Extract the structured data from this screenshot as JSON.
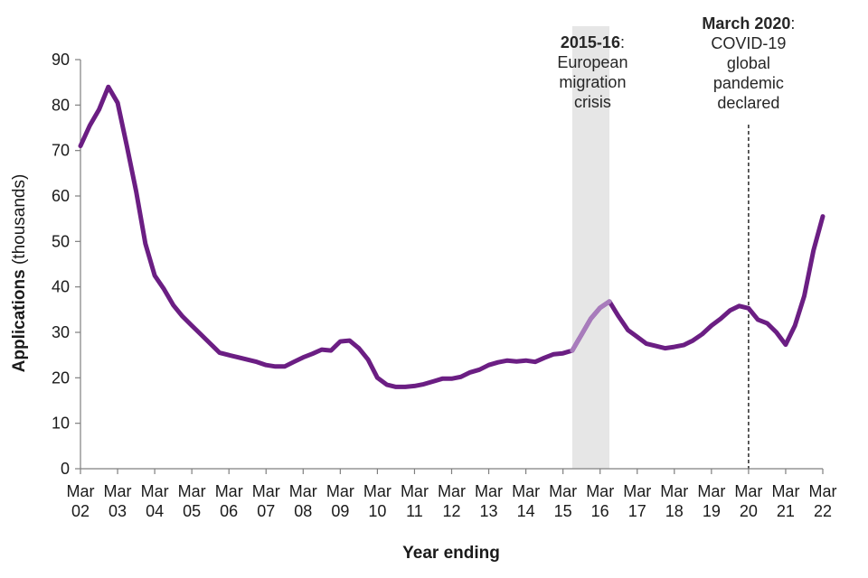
{
  "chart_data": {
    "type": "line",
    "xlabel": "Year ending",
    "ylabel_bold": "Applications",
    "ylabel_rest": " (thousands)",
    "ylim": [
      0,
      90
    ],
    "yticks": [
      0,
      10,
      20,
      30,
      40,
      50,
      60,
      70,
      80,
      90
    ],
    "xticks": [
      {
        "month": "Mar",
        "year": "02",
        "t": 2002
      },
      {
        "month": "Mar",
        "year": "03",
        "t": 2003
      },
      {
        "month": "Mar",
        "year": "04",
        "t": 2004
      },
      {
        "month": "Mar",
        "year": "05",
        "t": 2005
      },
      {
        "month": "Mar",
        "year": "06",
        "t": 2006
      },
      {
        "month": "Mar",
        "year": "07",
        "t": 2007
      },
      {
        "month": "Mar",
        "year": "08",
        "t": 2008
      },
      {
        "month": "Mar",
        "year": "09",
        "t": 2009
      },
      {
        "month": "Mar",
        "year": "10",
        "t": 2010
      },
      {
        "month": "Mar",
        "year": "11",
        "t": 2011
      },
      {
        "month": "Mar",
        "year": "12",
        "t": 2012
      },
      {
        "month": "Mar",
        "year": "13",
        "t": 2013
      },
      {
        "month": "Mar",
        "year": "14",
        "t": 2014
      },
      {
        "month": "Mar",
        "year": "15",
        "t": 2015
      },
      {
        "month": "Mar",
        "year": "16",
        "t": 2016
      },
      {
        "month": "Mar",
        "year": "17",
        "t": 2017
      },
      {
        "month": "Mar",
        "year": "18",
        "t": 2018
      },
      {
        "month": "Mar",
        "year": "19",
        "t": 2019
      },
      {
        "month": "Mar",
        "year": "20",
        "t": 2020
      },
      {
        "month": "Mar",
        "year": "21",
        "t": 2021
      },
      {
        "month": "Mar",
        "year": "22",
        "t": 2022
      }
    ],
    "xlim": [
      2002,
      2022
    ],
    "series": [
      {
        "color": "#6b1e83",
        "highlight_color": "#a87cbc",
        "highlight_range": [
          2015.25,
          2016.25
        ],
        "x": [
          2002.0,
          2002.25,
          2002.5,
          2002.75,
          2003.0,
          2003.25,
          2003.5,
          2003.75,
          2004.0,
          2004.25,
          2004.5,
          2004.75,
          2005.0,
          2005.25,
          2005.5,
          2005.75,
          2006.0,
          2006.25,
          2006.5,
          2006.75,
          2007.0,
          2007.25,
          2007.5,
          2007.75,
          2008.0,
          2008.25,
          2008.5,
          2008.75,
          2009.0,
          2009.25,
          2009.5,
          2009.75,
          2010.0,
          2010.25,
          2010.5,
          2010.75,
          2011.0,
          2011.25,
          2011.5,
          2011.75,
          2012.0,
          2012.25,
          2012.5,
          2012.75,
          2013.0,
          2013.25,
          2013.5,
          2013.75,
          2014.0,
          2014.25,
          2014.5,
          2014.75,
          2015.0,
          2015.25,
          2015.5,
          2015.75,
          2016.0,
          2016.25,
          2016.5,
          2016.75,
          2017.0,
          2017.25,
          2017.5,
          2017.75,
          2018.0,
          2018.25,
          2018.5,
          2018.75,
          2019.0,
          2019.25,
          2019.5,
          2019.75,
          2020.0,
          2020.25,
          2020.5,
          2020.75,
          2021.0,
          2021.25,
          2021.5,
          2021.75,
          2022.0
        ],
        "values": [
          71,
          75.5,
          79,
          84,
          80.5,
          71,
          61,
          49.5,
          42.5,
          39.5,
          36,
          33.5,
          31.5,
          29.5,
          27.5,
          25.5,
          25,
          24.5,
          24,
          23.5,
          22.8,
          22.5,
          22.5,
          23.5,
          24.5,
          25.3,
          26.2,
          26,
          28,
          28.2,
          26.5,
          24,
          20,
          18.5,
          18,
          18,
          18.2,
          18.6,
          19.2,
          19.8,
          19.8,
          20.2,
          21.2,
          21.8,
          22.8,
          23.4,
          23.8,
          23.6,
          23.8,
          23.5,
          24.4,
          25.2,
          25.4,
          26,
          29.5,
          33,
          35.4,
          36.8,
          33.5,
          30.5,
          29,
          27.5,
          27,
          26.5,
          26.8,
          27.2,
          28.2,
          29.6,
          31.5,
          33,
          34.8,
          35.8,
          35.3,
          32.8,
          32,
          30,
          27.3,
          31.5,
          38,
          48,
          55.5
        ]
      }
    ],
    "annotations": [
      {
        "kind": "band",
        "x_start": 2015.25,
        "x_end": 2016.25,
        "lines": [
          {
            "bold": "2015-16",
            "rest": ":"
          },
          {
            "text": "European"
          },
          {
            "text": "migration"
          },
          {
            "text": "crisis"
          }
        ]
      },
      {
        "kind": "vline",
        "x": 2020.0,
        "lines": [
          {
            "bold": "March 2020",
            "rest": ":"
          },
          {
            "text": "COVID-19"
          },
          {
            "text": "global"
          },
          {
            "text": "pandemic"
          },
          {
            "text": "declared"
          }
        ]
      }
    ]
  }
}
